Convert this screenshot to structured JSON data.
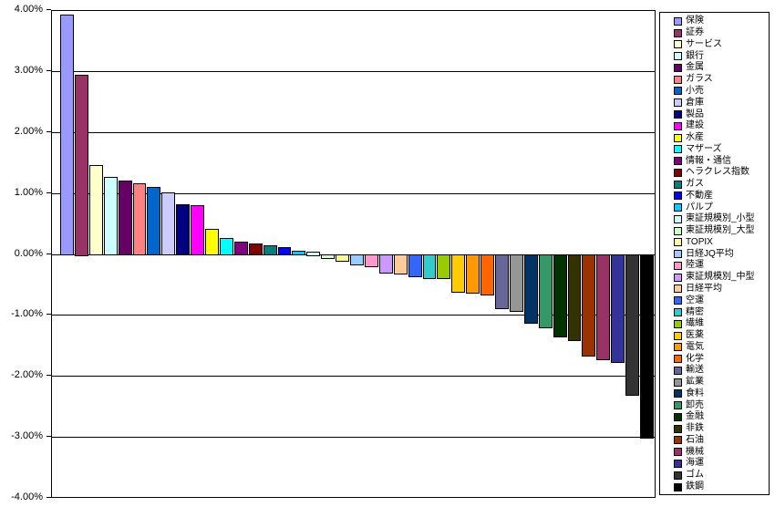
{
  "chart_data": {
    "type": "bar",
    "orientation": "vertical",
    "description": "Daily percentage change by Japanese stock market sector/index, sorted descending",
    "xlabel": "",
    "ylabel": "",
    "ylim": [
      -4,
      4
    ],
    "ytick_step": 1,
    "ytick_labels": [
      "4.00%",
      "3.00%",
      "2.00%",
      "1.00%",
      "0.00%",
      "-1.00%",
      "-2.00%",
      "-3.00%",
      "-4.00%"
    ],
    "grid": true,
    "plot_background": "#FFFFFF",
    "axis_color": "#000000",
    "bar_outline_color": "#000000",
    "legend_position": "right",
    "series": [
      {
        "name": "保険",
        "value": 3.94,
        "color": "#9999FF"
      },
      {
        "name": "証券",
        "value": 2.95,
        "color": "#993366"
      },
      {
        "name": "サービス",
        "value": 1.48,
        "color": "#FFFFCC"
      },
      {
        "name": "銀行",
        "value": 1.28,
        "color": "#CCFFFF"
      },
      {
        "name": "金属",
        "value": 1.22,
        "color": "#660066"
      },
      {
        "name": "ガラス",
        "value": 1.17,
        "color": "#FF8080"
      },
      {
        "name": "小売",
        "value": 1.12,
        "color": "#0066CC"
      },
      {
        "name": "倉庫",
        "value": 1.02,
        "color": "#CCCCFF"
      },
      {
        "name": "製品",
        "value": 0.83,
        "color": "#000080"
      },
      {
        "name": "建設",
        "value": 0.81,
        "color": "#FF00FF"
      },
      {
        "name": "水産",
        "value": 0.43,
        "color": "#FFFF00"
      },
      {
        "name": "マザーズ",
        "value": 0.28,
        "color": "#00FFFF"
      },
      {
        "name": "情報・通信",
        "value": 0.22,
        "color": "#800080"
      },
      {
        "name": "ヘラクレス指数",
        "value": 0.18,
        "color": "#800000"
      },
      {
        "name": "ガス",
        "value": 0.16,
        "color": "#008080"
      },
      {
        "name": "不動産",
        "value": 0.13,
        "color": "#0000FF"
      },
      {
        "name": "パルプ",
        "value": 0.07,
        "color": "#00CCFF"
      },
      {
        "name": "東証規模別_小型",
        "value": 0.05,
        "color": "#CCFFFF"
      },
      {
        "name": "東証規模別_大型",
        "value": -0.06,
        "color": "#CCFFCC"
      },
      {
        "name": "TOPIX",
        "value": -0.11,
        "color": "#FFFF99"
      },
      {
        "name": "日経JQ平均",
        "value": -0.17,
        "color": "#99CCFF"
      },
      {
        "name": "陸運",
        "value": -0.2,
        "color": "#FF99CC"
      },
      {
        "name": "東証規模別_中型",
        "value": -0.3,
        "color": "#CC99FF"
      },
      {
        "name": "日経平均",
        "value": -0.32,
        "color": "#FFCC99"
      },
      {
        "name": "空運",
        "value": -0.36,
        "color": "#3366FF"
      },
      {
        "name": "精密",
        "value": -0.39,
        "color": "#33CCCC"
      },
      {
        "name": "繊維",
        "value": -0.4,
        "color": "#99CC00"
      },
      {
        "name": "医薬",
        "value": -0.62,
        "color": "#FFCC00"
      },
      {
        "name": "電気",
        "value": -0.64,
        "color": "#FF9900"
      },
      {
        "name": "化学",
        "value": -0.66,
        "color": "#FF6600"
      },
      {
        "name": "輸送",
        "value": -0.89,
        "color": "#666699"
      },
      {
        "name": "鉱業",
        "value": -0.93,
        "color": "#969696"
      },
      {
        "name": "食料",
        "value": -1.13,
        "color": "#003366"
      },
      {
        "name": "卸売",
        "value": -1.2,
        "color": "#339966"
      },
      {
        "name": "金融",
        "value": -1.35,
        "color": "#003300"
      },
      {
        "name": "非鉄",
        "value": -1.42,
        "color": "#333300"
      },
      {
        "name": "石油",
        "value": -1.67,
        "color": "#993300"
      },
      {
        "name": "機械",
        "value": -1.72,
        "color": "#993366"
      },
      {
        "name": "海運",
        "value": -1.77,
        "color": "#333399"
      },
      {
        "name": "ゴム",
        "value": -2.31,
        "color": "#333333"
      },
      {
        "name": "鉄鋼",
        "value": -3.01,
        "color": "#000000"
      }
    ]
  }
}
